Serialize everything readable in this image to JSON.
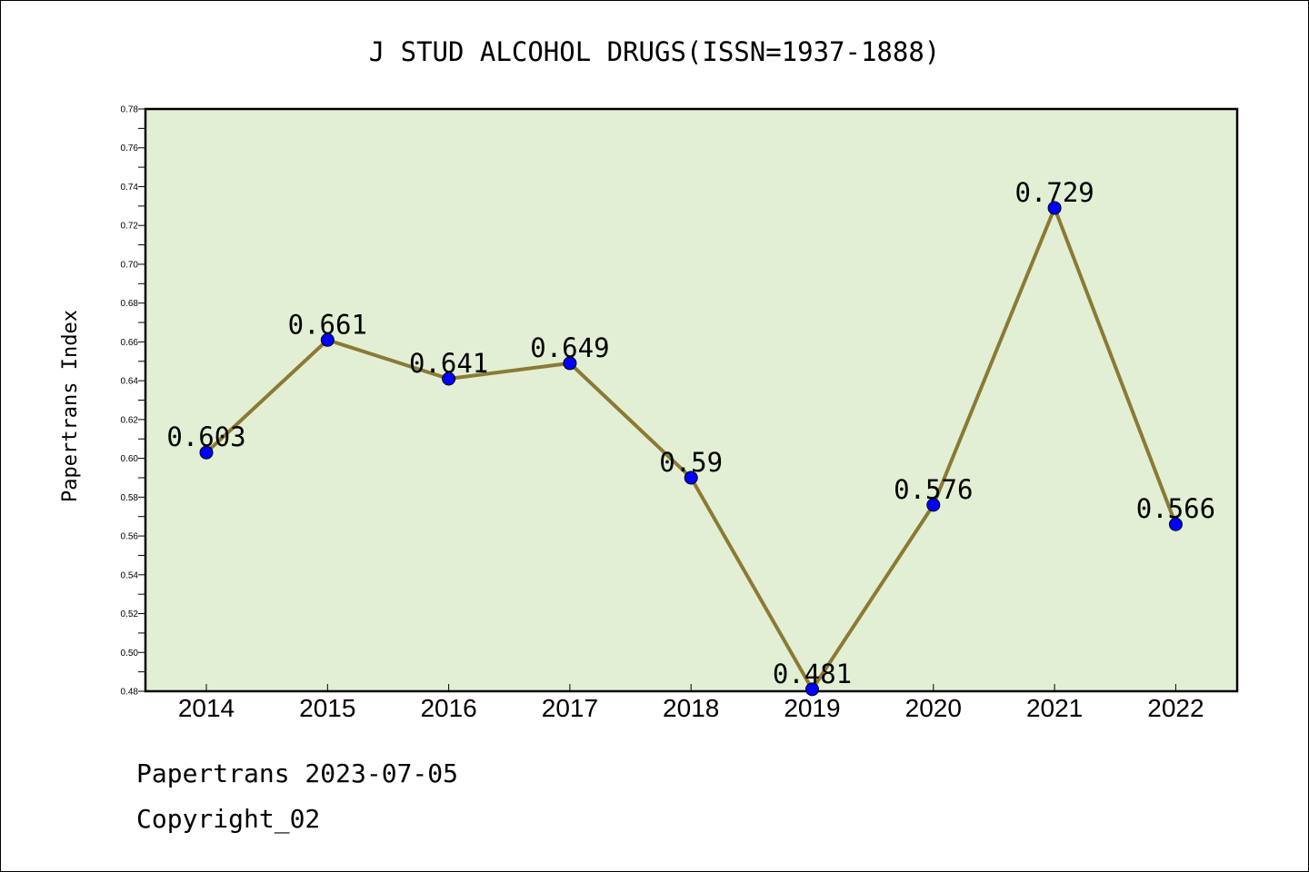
{
  "chart_data": {
    "type": "line",
    "title": "J STUD ALCOHOL DRUGS(ISSN=1937-1888)",
    "ylabel": "Papertrans Index",
    "xlabel": "",
    "categories": [
      "2014",
      "2015",
      "2016",
      "2017",
      "2018",
      "2019",
      "2020",
      "2021",
      "2022"
    ],
    "series": [
      {
        "values": [
          0.603,
          0.661,
          0.641,
          0.649,
          0.59,
          0.481,
          0.576,
          0.729,
          0.566
        ],
        "labels": [
          "0.603",
          "0.661",
          "0.641",
          "0.649",
          "0.59",
          "0.481",
          "0.576",
          "0.729",
          "0.566"
        ],
        "line_color": "#8b7a35",
        "marker_color": "#0000ff"
      }
    ],
    "ylim": [
      0.48,
      0.78
    ],
    "yticks": [
      "0.48",
      "0.50",
      "0.52",
      "0.54",
      "0.56",
      "0.58",
      "0.60",
      "0.62",
      "0.64",
      "0.66",
      "0.68",
      "0.70",
      "0.72",
      "0.74",
      "0.76",
      "0.78"
    ],
    "plot_background": "#e2efd5",
    "grid": false,
    "legend": "none"
  },
  "footer": {
    "line1": "Papertrans 2023-07-05",
    "line2": "Copyright_02"
  }
}
